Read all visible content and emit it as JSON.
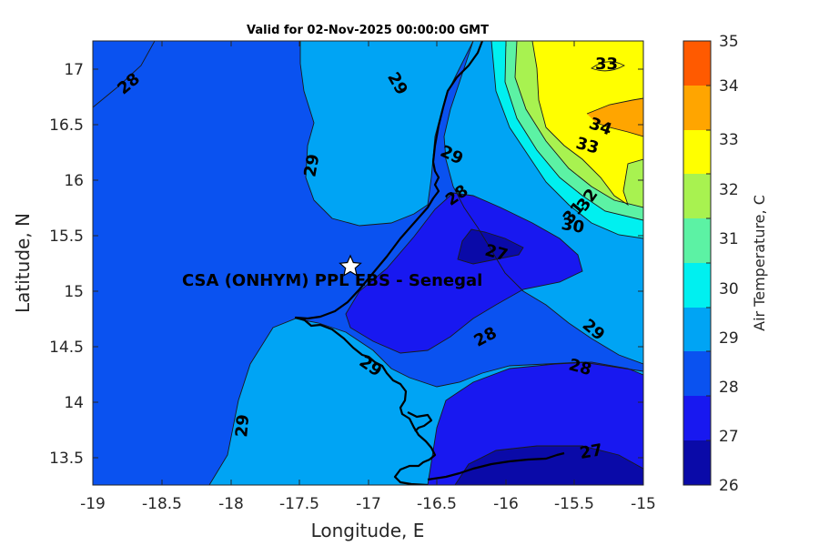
{
  "title": "Valid for 02-Nov-2025 00:00:00 GMT",
  "x_axis": {
    "label": "Longitude, E",
    "ticks": [
      "-19",
      "-18.5",
      "-18",
      "-17.5",
      "-17",
      "-16.5",
      "-16",
      "-15.5",
      "-15"
    ]
  },
  "y_axis": {
    "label": "Latitude, N",
    "ticks": [
      "17",
      "16.5",
      "16",
      "15.5",
      "15",
      "14.5",
      "14",
      "13.5"
    ]
  },
  "colorbar": {
    "label": "Air Temperature, C",
    "ticks": [
      "35",
      "34",
      "33",
      "32",
      "31",
      "30",
      "29",
      "28",
      "27",
      "26"
    ],
    "colors": {
      "26-27": "#0a0aa8",
      "27-28": "#1818f0",
      "28-29": "#0a52f0",
      "29-30": "#00a4f4",
      "30-31": "#00f0f0",
      "31-32": "#5cf2a4",
      "32-33": "#a8f250",
      "33-34": "#ffff00",
      "34-35": "#ffa500"
    }
  },
  "station": {
    "name": "CSA (ONHYM) PPL EBS  - Senegal",
    "lon": -17.12,
    "lat": 15.23,
    "marker": "star-icon"
  },
  "contour_labels": [
    "28",
    "29",
    "29",
    "29",
    "28",
    "27",
    "33",
    "34",
    "33",
    "32",
    "31",
    "30",
    "29",
    "28",
    "28",
    "29",
    "29",
    "27"
  ],
  "chart_data": {
    "type": "heatmap",
    "title": "Valid for 02-Nov-2025 00:00:00 GMT",
    "xlabel": "Longitude, E",
    "ylabel": "Latitude, N",
    "xlim": [
      -19,
      -15
    ],
    "ylim": [
      13.25,
      17.25
    ],
    "colorbar_label": "Air Temperature, C",
    "clim": [
      26,
      35
    ],
    "levels": [
      26,
      27,
      28,
      29,
      30,
      31,
      32,
      33,
      34,
      35
    ],
    "grid": false,
    "features": [
      "West African coastline (Senegal)",
      "filled temperature contours",
      "station marker"
    ]
  }
}
